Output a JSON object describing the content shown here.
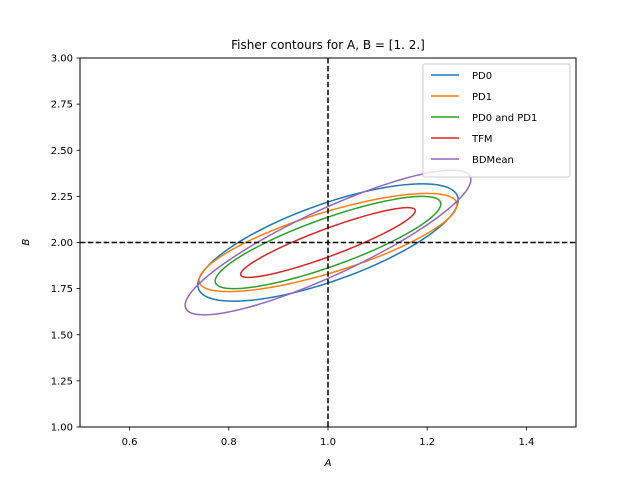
{
  "chart_data": {
    "type": "line",
    "title": "Fisher contours for A, B = [1. 2.]",
    "xlabel": "A",
    "ylabel": "B",
    "xlim": [
      0.5,
      1.5
    ],
    "ylim": [
      1.0,
      3.0
    ],
    "xticks": [
      0.6,
      0.8,
      1.0,
      1.2,
      1.4
    ],
    "xtick_labels": [
      "0.6",
      "0.8",
      "1.0",
      "1.2",
      "1.4"
    ],
    "yticks": [
      1.0,
      1.25,
      1.5,
      1.75,
      2.0,
      2.25,
      2.5,
      2.75,
      3.0
    ],
    "ytick_labels": [
      "1.00",
      "1.25",
      "1.50",
      "1.75",
      "2.00",
      "2.25",
      "2.50",
      "2.75",
      "3.00"
    ],
    "reference_lines": {
      "x": 1.0,
      "y": 2.0,
      "style": "dashed",
      "color": "#000000"
    },
    "grid": false,
    "legend": "top-right",
    "series": [
      {
        "name": "PD0",
        "color": "#1f77b4",
        "center": [
          1.0,
          2.0
        ],
        "extent": {
          "A": [
            0.738,
            1.263
          ],
          "B": [
            1.682,
            2.318
          ]
        },
        "x_at_B_max": 1.19,
        "x_at_B_min": 0.81
      },
      {
        "name": "PD1",
        "color": "#ff7f0e",
        "center": [
          1.0,
          2.0
        ],
        "extent": {
          "A": [
            0.746,
            1.266
          ],
          "B": [
            1.734,
            2.266
          ]
        },
        "x_at_B_max": 1.2,
        "x_at_B_min": 0.8
      },
      {
        "name": "PD0 and PD1",
        "color": "#2ca02c",
        "center": [
          1.0,
          2.0
        ],
        "extent": {
          "A": [
            0.774,
            1.229
          ],
          "B": [
            1.75,
            2.25
          ]
        },
        "x_at_B_max": 1.19,
        "x_at_B_min": 0.81
      },
      {
        "name": "TFM",
        "color": "#d62728",
        "center": [
          1.0,
          2.0
        ],
        "extent": {
          "A": [
            0.824,
            1.176
          ],
          "B": [
            1.811,
            2.189
          ]
        },
        "x_at_B_max": 1.16,
        "x_at_B_min": 0.84
      },
      {
        "name": "BDMean",
        "color": "#9467bd",
        "center": [
          1.0,
          2.0
        ],
        "extent": {
          "A": [
            0.712,
            1.288
          ],
          "B": [
            1.608,
            2.392
          ]
        },
        "x_at_B_max": 1.25,
        "x_at_B_min": 0.75
      }
    ]
  }
}
